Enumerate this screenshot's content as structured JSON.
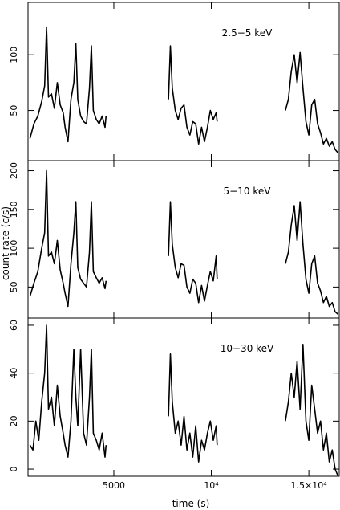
{
  "chart_data": {
    "type": "line",
    "xlabel": "time (s)",
    "ylabel": "count rate (c/s)",
    "xlim": [
      600,
      16600
    ],
    "x_ticks": [
      {
        "value": 5000,
        "label": "5000"
      },
      {
        "value": 10000,
        "label": "10⁴"
      },
      {
        "value": 15000,
        "label": "1.5×10⁴"
      }
    ],
    "segments": [
      [
        700,
        4600
      ],
      [
        7800,
        10300
      ],
      [
        13800,
        16500
      ]
    ],
    "panels": [
      {
        "name": "2.5-5 keV",
        "label": "2.5−5 keV",
        "ylim": [
          5,
          147
        ],
        "yticks": [
          50,
          100
        ],
        "ytick_labels": [
          "50",
          "100"
        ],
        "points": [
          [
            700,
            25
          ],
          [
            900,
            38
          ],
          [
            1100,
            45
          ],
          [
            1300,
            58
          ],
          [
            1450,
            72
          ],
          [
            1550,
            125
          ],
          [
            1650,
            62
          ],
          [
            1800,
            65
          ],
          [
            1950,
            52
          ],
          [
            2100,
            75
          ],
          [
            2250,
            55
          ],
          [
            2400,
            48
          ],
          [
            2500,
            35
          ],
          [
            2650,
            22
          ],
          [
            2800,
            60
          ],
          [
            2950,
            75
          ],
          [
            3050,
            110
          ],
          [
            3150,
            60
          ],
          [
            3300,
            45
          ],
          [
            3450,
            40
          ],
          [
            3600,
            38
          ],
          [
            3750,
            70
          ],
          [
            3850,
            108
          ],
          [
            3950,
            50
          ],
          [
            4100,
            42
          ],
          [
            4250,
            38
          ],
          [
            4400,
            45
          ],
          [
            4550,
            35
          ],
          [
            4600,
            45
          ],
          [
            7800,
            60
          ],
          [
            7900,
            108
          ],
          [
            8000,
            70
          ],
          [
            8150,
            50
          ],
          [
            8300,
            42
          ],
          [
            8450,
            52
          ],
          [
            8600,
            55
          ],
          [
            8750,
            35
          ],
          [
            8900,
            28
          ],
          [
            9050,
            40
          ],
          [
            9200,
            38
          ],
          [
            9350,
            20
          ],
          [
            9500,
            35
          ],
          [
            9650,
            22
          ],
          [
            9800,
            35
          ],
          [
            9950,
            50
          ],
          [
            10100,
            42
          ],
          [
            10250,
            48
          ],
          [
            10300,
            40
          ],
          [
            13800,
            50
          ],
          [
            13950,
            60
          ],
          [
            14100,
            85
          ],
          [
            14250,
            100
          ],
          [
            14400,
            75
          ],
          [
            14550,
            102
          ],
          [
            14700,
            70
          ],
          [
            14850,
            40
          ],
          [
            15000,
            28
          ],
          [
            15150,
            55
          ],
          [
            15300,
            60
          ],
          [
            15450,
            38
          ],
          [
            15600,
            30
          ],
          [
            15750,
            20
          ],
          [
            15900,
            25
          ],
          [
            16050,
            18
          ],
          [
            16200,
            22
          ],
          [
            16350,
            15
          ],
          [
            16500,
            12
          ]
        ]
      },
      {
        "name": "5-10 keV",
        "label": "5−10 keV",
        "ylim": [
          10,
          213
        ],
        "yticks": [
          50,
          100,
          150,
          200
        ],
        "ytick_labels": [
          "50",
          "100",
          "150",
          "200"
        ],
        "points": [
          [
            700,
            38
          ],
          [
            900,
            55
          ],
          [
            1100,
            70
          ],
          [
            1300,
            100
          ],
          [
            1450,
            120
          ],
          [
            1550,
            200
          ],
          [
            1650,
            90
          ],
          [
            1800,
            95
          ],
          [
            1950,
            80
          ],
          [
            2100,
            110
          ],
          [
            2250,
            72
          ],
          [
            2400,
            55
          ],
          [
            2500,
            42
          ],
          [
            2650,
            25
          ],
          [
            2800,
            80
          ],
          [
            2950,
            120
          ],
          [
            3050,
            160
          ],
          [
            3150,
            75
          ],
          [
            3300,
            60
          ],
          [
            3450,
            55
          ],
          [
            3600,
            50
          ],
          [
            3750,
            95
          ],
          [
            3850,
            160
          ],
          [
            3950,
            70
          ],
          [
            4100,
            62
          ],
          [
            4250,
            55
          ],
          [
            4400,
            62
          ],
          [
            4550,
            48
          ],
          [
            4600,
            58
          ],
          [
            7800,
            90
          ],
          [
            7900,
            160
          ],
          [
            8000,
            105
          ],
          [
            8150,
            75
          ],
          [
            8300,
            62
          ],
          [
            8450,
            80
          ],
          [
            8600,
            78
          ],
          [
            8750,
            50
          ],
          [
            8900,
            42
          ],
          [
            9050,
            60
          ],
          [
            9200,
            55
          ],
          [
            9350,
            30
          ],
          [
            9500,
            52
          ],
          [
            9650,
            32
          ],
          [
            9800,
            52
          ],
          [
            9950,
            70
          ],
          [
            10100,
            58
          ],
          [
            10250,
            90
          ],
          [
            10300,
            60
          ],
          [
            13800,
            80
          ],
          [
            13950,
            95
          ],
          [
            14100,
            130
          ],
          [
            14250,
            155
          ],
          [
            14400,
            110
          ],
          [
            14550,
            160
          ],
          [
            14700,
            105
          ],
          [
            14850,
            60
          ],
          [
            15000,
            42
          ],
          [
            15150,
            80
          ],
          [
            15300,
            90
          ],
          [
            15450,
            55
          ],
          [
            15600,
            45
          ],
          [
            15750,
            30
          ],
          [
            15900,
            38
          ],
          [
            16050,
            25
          ],
          [
            16200,
            30
          ],
          [
            16350,
            18
          ],
          [
            16500,
            15
          ]
        ]
      },
      {
        "name": "10-30 keV",
        "label": "10−30 keV",
        "ylim": [
          -3,
          63
        ],
        "yticks": [
          0,
          20,
          40,
          60
        ],
        "ytick_labels": [
          "0",
          "20",
          "40",
          "60"
        ],
        "points": [
          [
            700,
            10
          ],
          [
            850,
            8
          ],
          [
            1000,
            20
          ],
          [
            1150,
            12
          ],
          [
            1300,
            28
          ],
          [
            1450,
            40
          ],
          [
            1550,
            60
          ],
          [
            1650,
            25
          ],
          [
            1800,
            30
          ],
          [
            1950,
            18
          ],
          [
            2100,
            35
          ],
          [
            2250,
            22
          ],
          [
            2400,
            15
          ],
          [
            2500,
            10
          ],
          [
            2650,
            5
          ],
          [
            2800,
            20
          ],
          [
            2950,
            50
          ],
          [
            3050,
            30
          ],
          [
            3150,
            18
          ],
          [
            3300,
            50
          ],
          [
            3450,
            15
          ],
          [
            3600,
            10
          ],
          [
            3750,
            30
          ],
          [
            3850,
            50
          ],
          [
            3950,
            15
          ],
          [
            4100,
            12
          ],
          [
            4250,
            8
          ],
          [
            4400,
            15
          ],
          [
            4550,
            5
          ],
          [
            4600,
            10
          ],
          [
            7800,
            22
          ],
          [
            7900,
            48
          ],
          [
            8000,
            28
          ],
          [
            8150,
            15
          ],
          [
            8300,
            20
          ],
          [
            8450,
            10
          ],
          [
            8600,
            22
          ],
          [
            8750,
            8
          ],
          [
            8900,
            15
          ],
          [
            9050,
            5
          ],
          [
            9200,
            18
          ],
          [
            9350,
            3
          ],
          [
            9500,
            12
          ],
          [
            9650,
            8
          ],
          [
            9800,
            15
          ],
          [
            9950,
            20
          ],
          [
            10100,
            12
          ],
          [
            10250,
            18
          ],
          [
            10300,
            10
          ],
          [
            13800,
            20
          ],
          [
            13950,
            28
          ],
          [
            14100,
            40
          ],
          [
            14250,
            30
          ],
          [
            14400,
            45
          ],
          [
            14550,
            25
          ],
          [
            14700,
            52
          ],
          [
            14850,
            20
          ],
          [
            15000,
            12
          ],
          [
            15150,
            35
          ],
          [
            15300,
            25
          ],
          [
            15450,
            15
          ],
          [
            15600,
            20
          ],
          [
            15750,
            8
          ],
          [
            15900,
            15
          ],
          [
            16050,
            3
          ],
          [
            16200,
            8
          ],
          [
            16350,
            0
          ],
          [
            16500,
            -3
          ]
        ]
      }
    ]
  }
}
